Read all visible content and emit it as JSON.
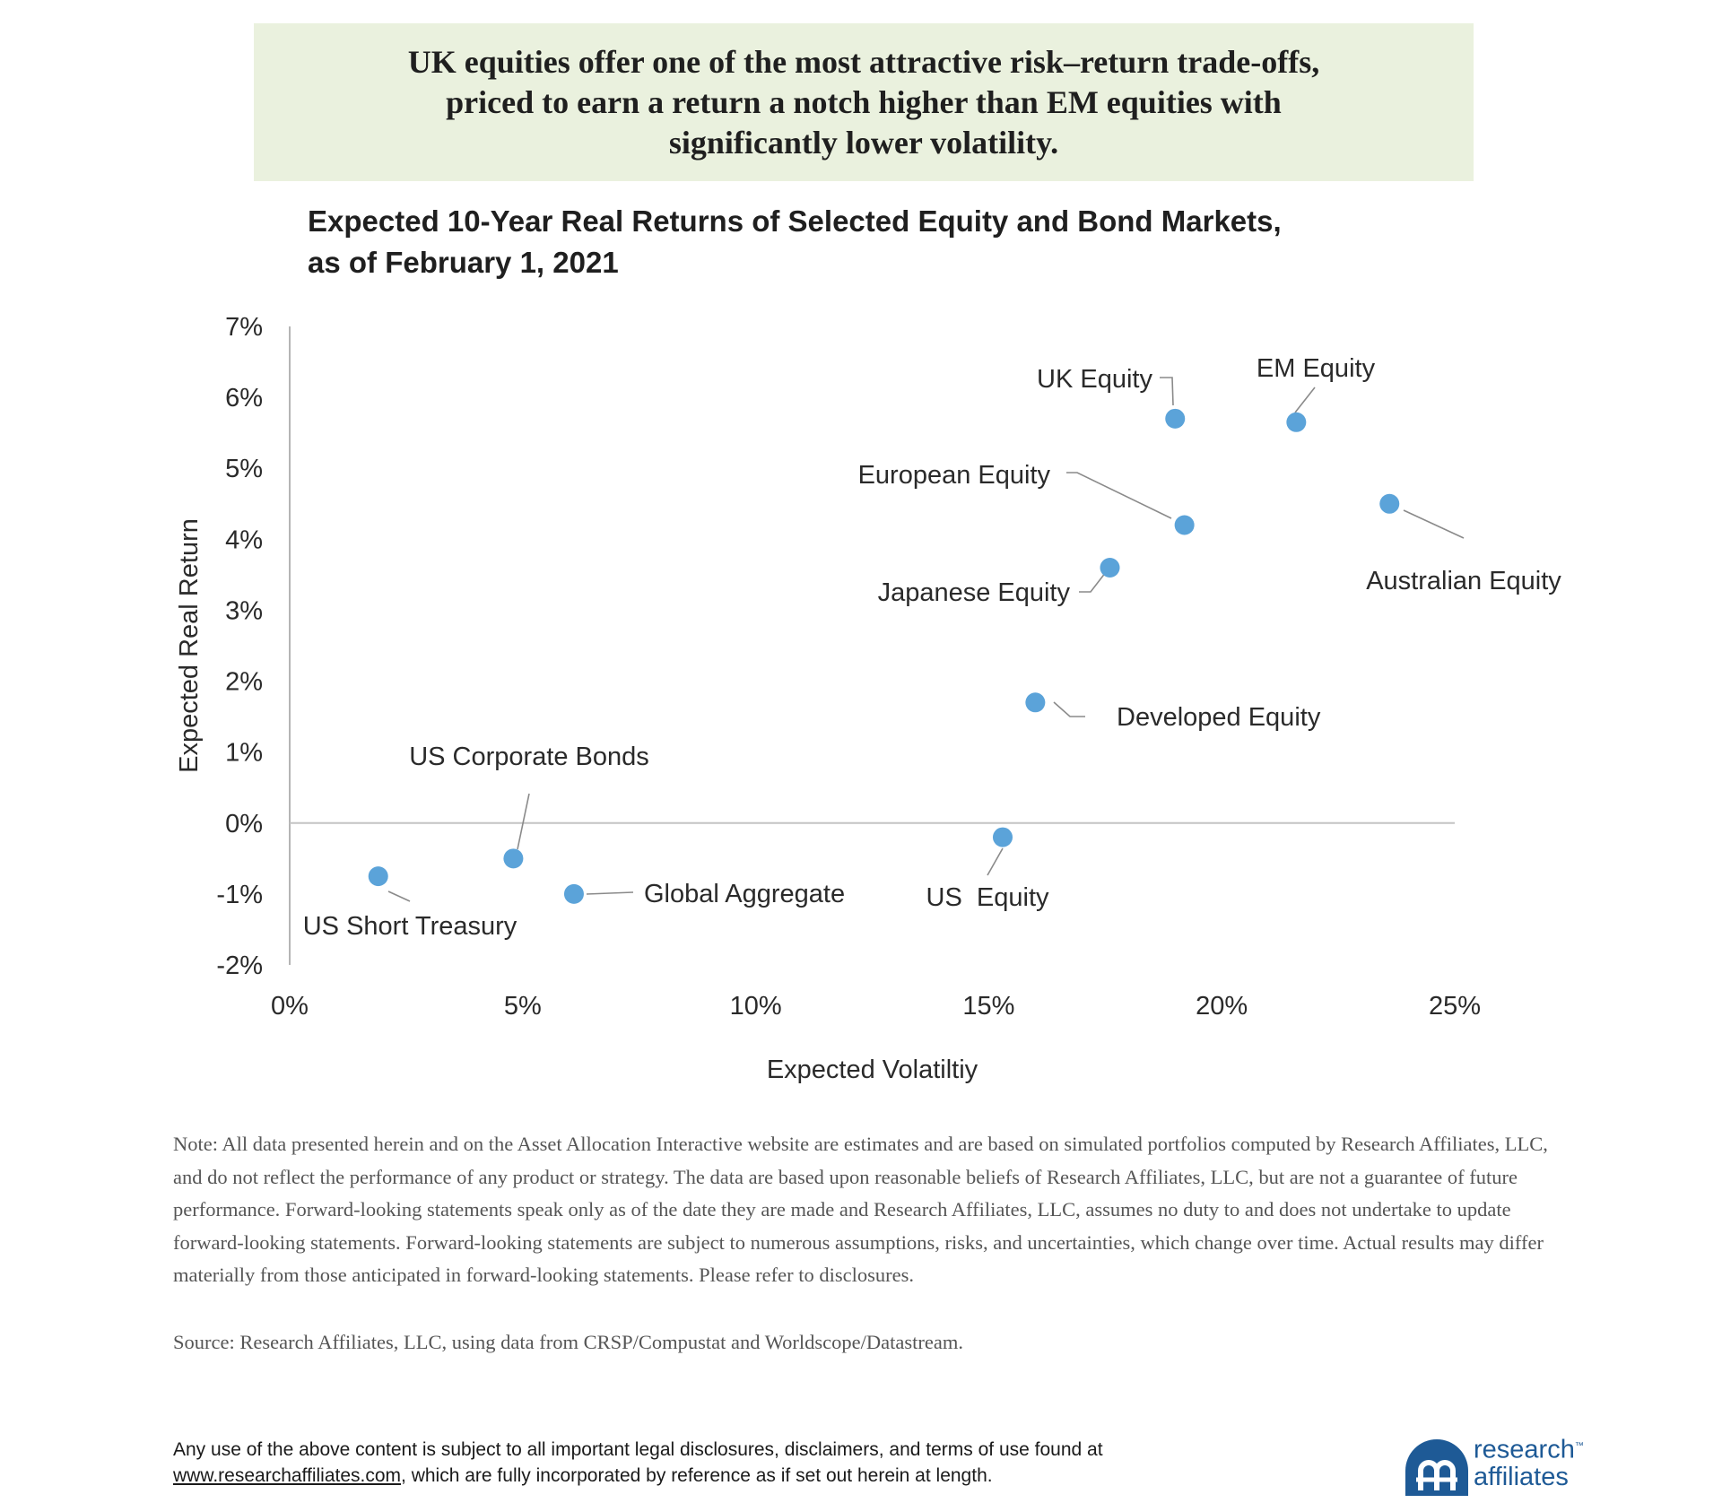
{
  "headline": {
    "lines": [
      "UK equities offer one of the most attractive risk–return trade-offs,",
      "priced to earn a return a notch higher than EM equities with",
      "significantly lower volatility."
    ]
  },
  "chart_data": {
    "type": "scatter",
    "title_lines": [
      "Expected 10-Year Real Returns of Selected Equity and Bond Markets,",
      "as of February 1, 2021"
    ],
    "xlabel": "Expected Volatiltiy",
    "ylabel": "Expected Real Return",
    "xlim": [
      0,
      25
    ],
    "ylim": [
      -2,
      7
    ],
    "x_ticks": [
      0,
      5,
      10,
      15,
      20,
      25
    ],
    "y_ticks": [
      -2,
      -1,
      0,
      1,
      2,
      3,
      4,
      5,
      6,
      7
    ],
    "x_tick_labels": [
      "0%",
      "5%",
      "10%",
      "15%",
      "20%",
      "25%"
    ],
    "y_tick_labels": [
      "-2%",
      "-1%",
      "0%",
      "1%",
      "2%",
      "3%",
      "4%",
      "5%",
      "6%",
      "7%"
    ],
    "grid": false,
    "point_color": "#5ba3d9",
    "points": [
      {
        "label": "UK Equity",
        "x": 19.0,
        "y": 5.7
      },
      {
        "label": "EM Equity",
        "x": 21.6,
        "y": 5.65
      },
      {
        "label": "European Equity",
        "x": 19.2,
        "y": 4.2
      },
      {
        "label": "Australian Equity",
        "x": 23.6,
        "y": 4.5
      },
      {
        "label": "Japanese Equity",
        "x": 17.6,
        "y": 3.6
      },
      {
        "label": "Developed Equity",
        "x": 16.0,
        "y": 1.7
      },
      {
        "label": "US Corporate Bonds",
        "x": 4.8,
        "y": -0.5
      },
      {
        "label": "US  Equity",
        "x": 15.3,
        "y": -0.2
      },
      {
        "label": "US Short Treasury",
        "x": 1.9,
        "y": -0.75
      },
      {
        "label": "Global Aggregate",
        "x": 6.1,
        "y": -1.0
      }
    ]
  },
  "note": "Note: All data presented herein and on the Asset Allocation Interactive website are estimates and are based on simulated portfolios computed by Research Affiliates, LLC, and do not reflect the performance of any product or strategy. The data are based upon reasonable beliefs of Research Affiliates, LLC, but are not a guarantee of future performance. Forward-looking statements speak only as of the date they are made and Research Affiliates, LLC, assumes no duty to and does not undertake to update forward-looking statements. Forward-looking statements are subject to numerous assumptions, risks, and uncertainties, which change over time. Actual results may differ materially from those anticipated in forward-looking statements. Please refer to disclosures.",
  "source": "Source: Research Affiliates, LLC, using data from CRSP/Compustat and Worldscope/Datastream.",
  "legal": {
    "line1": "Any use of the above content is subject to all important legal disclosures, disclaimers, and terms of use found at",
    "link_text": "www.researchaffiliates.com",
    "line2_rest": ", which are fully incorporated by reference as if set out herein at length."
  },
  "logo": {
    "line1": "research",
    "tm": "™",
    "line2": "affiliates",
    "color": "#1e5a96"
  }
}
